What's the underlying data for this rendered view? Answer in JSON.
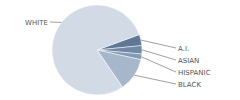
{
  "chart_data": {
    "type": "pie",
    "categories": [
      "A.I.",
      "ASIAN",
      "HISPANIC",
      "BLACK",
      "WHITE"
    ],
    "values": [
      4,
      3,
      2,
      12,
      79
    ],
    "colors": [
      "#5f7896",
      "#7189a6",
      "#8499b3",
      "#a7b7cb",
      "#d2dae5"
    ]
  }
}
